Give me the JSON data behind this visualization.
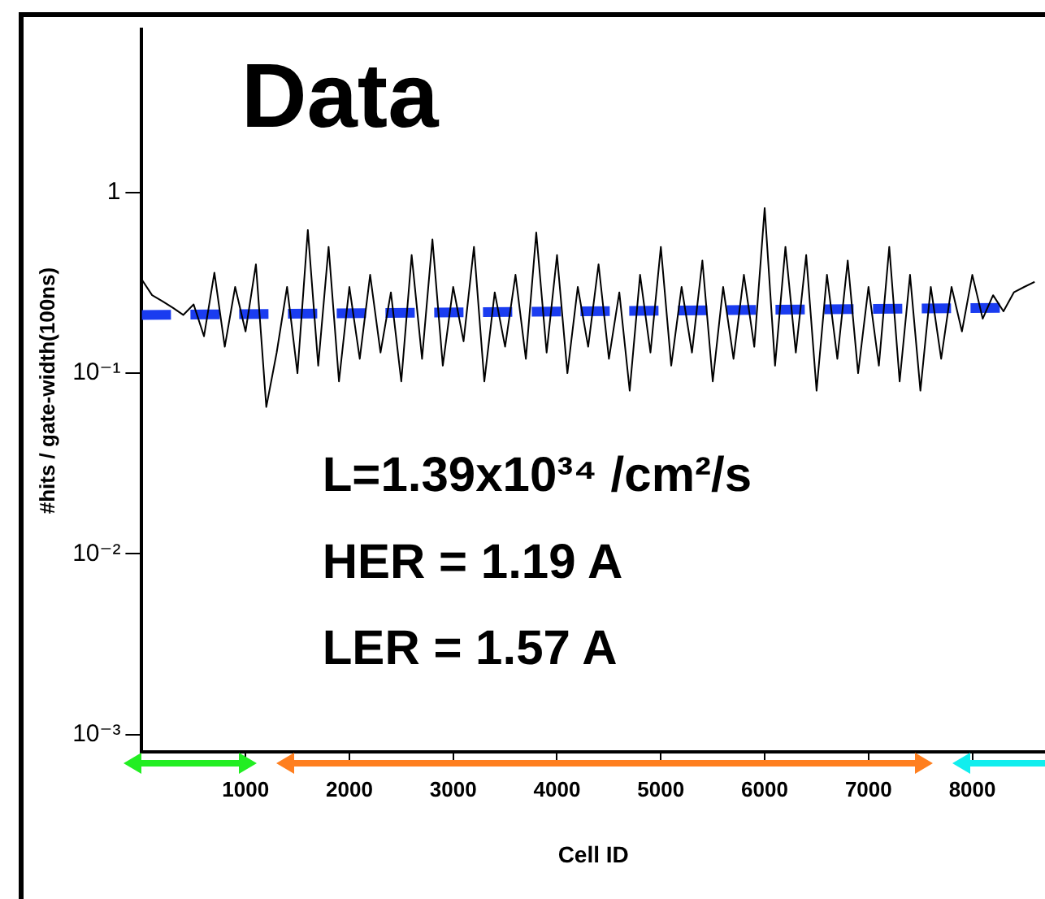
{
  "chart_data": {
    "type": "line",
    "xlabel": "Cell ID",
    "ylabel": "#hits / gate-width(100ns)",
    "annotations": [
      "Data",
      "L=1.39x10³⁴ /cm²/s",
      "HER = 1.19 A",
      "LER = 1.57 A"
    ],
    "series": [
      {
        "color": "#000000",
        "x": [
          0,
          100,
          200,
          300,
          400,
          500,
          600,
          700,
          800,
          900,
          1000,
          1100,
          1200,
          1300,
          1400,
          1500,
          1600,
          1700,
          1800,
          1900,
          2000,
          2100,
          2200,
          2300,
          2400,
          2500,
          2600,
          2700,
          2800,
          2900,
          3000,
          3100,
          3200,
          3300,
          3400,
          3500,
          3600,
          3700,
          3800,
          3900,
          4000,
          4100,
          4200,
          4300,
          4400,
          4500,
          4600,
          4700,
          4800,
          4900,
          5000,
          5100,
          5200,
          5300,
          5400,
          5500,
          5600,
          5700,
          5800,
          5900,
          6000,
          6100,
          6200,
          6300,
          6400,
          6500,
          6600,
          6700,
          6800,
          6900,
          7000,
          7100,
          7200,
          7300,
          7400,
          7500,
          7600,
          7700,
          7800,
          7900,
          8000,
          8100,
          8200,
          8300,
          8400,
          8500,
          8600
        ],
        "values": [
          0.33,
          0.27,
          0.25,
          0.23,
          0.21,
          0.24,
          0.16,
          0.36,
          0.14,
          0.3,
          0.17,
          0.4,
          0.065,
          0.13,
          0.3,
          0.1,
          0.62,
          0.11,
          0.5,
          0.09,
          0.3,
          0.12,
          0.35,
          0.13,
          0.28,
          0.09,
          0.45,
          0.12,
          0.55,
          0.11,
          0.3,
          0.15,
          0.5,
          0.09,
          0.28,
          0.14,
          0.35,
          0.12,
          0.6,
          0.13,
          0.45,
          0.1,
          0.3,
          0.14,
          0.4,
          0.12,
          0.28,
          0.08,
          0.35,
          0.13,
          0.5,
          0.11,
          0.3,
          0.13,
          0.42,
          0.09,
          0.3,
          0.12,
          0.35,
          0.14,
          0.82,
          0.11,
          0.5,
          0.13,
          0.45,
          0.08,
          0.35,
          0.12,
          0.42,
          0.1,
          0.3,
          0.11,
          0.5,
          0.09,
          0.35,
          0.08,
          0.3,
          0.12,
          0.3,
          0.17,
          0.35,
          0.2,
          0.27,
          0.22,
          0.28,
          0.3,
          0.32
        ]
      },
      {
        "color": "#1a3cf0",
        "line_style": "dashed",
        "x": [
          0,
          8300
        ],
        "values": [
          0.21,
          0.23
        ]
      }
    ],
    "xlim": [
      0,
      8700
    ],
    "xticks": [
      1000,
      2000,
      3000,
      4000,
      5000,
      6000,
      7000,
      8000
    ],
    "ylim": [
      0.0008,
      8
    ],
    "yticks": [
      {
        "value": 0.001,
        "label": "10⁻³"
      },
      {
        "value": 0.01,
        "label": "10⁻²"
      },
      {
        "value": 0.1,
        "label": "10⁻¹"
      },
      1
    ],
    "log": "y",
    "grid": false,
    "legend": false,
    "marker": "none"
  }
}
